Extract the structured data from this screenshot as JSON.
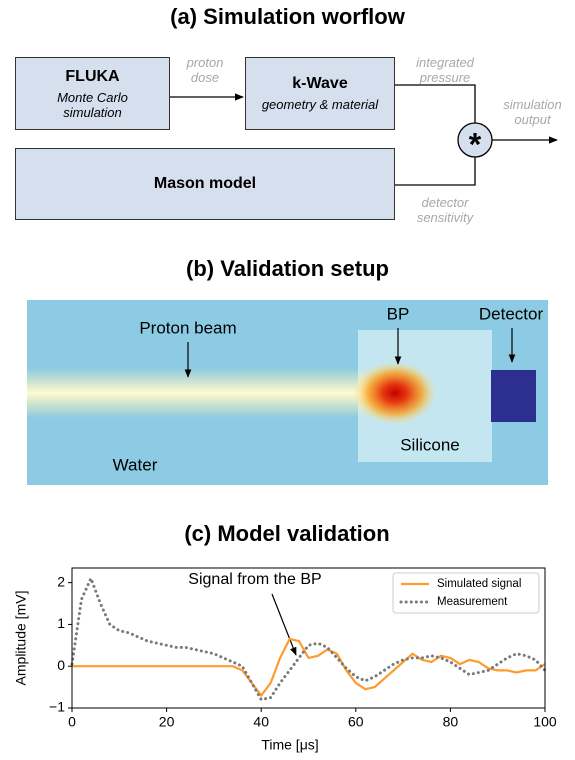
{
  "workflow": {
    "title": "(a) Simulation worflow",
    "boxes": [
      {
        "title": "FLUKA",
        "subtitle": "Monte Carlo\nsimulation"
      },
      {
        "title": "k-Wave",
        "subtitle": "geometry & material"
      },
      {
        "title": "Mason model"
      }
    ],
    "operator": "*",
    "labels": [
      "proton\ndose",
      "integrated\npressure",
      "simulation\noutput",
      "detector\nsensitivity"
    ]
  },
  "setup": {
    "title": "(b) Validation setup",
    "labels": [
      "Proton beam",
      "BP",
      "Detector",
      "Silicone",
      "Water"
    ]
  },
  "chart_data": {
    "type": "line",
    "title": "(c) Model validation",
    "xlabel": "Time [μs]",
    "ylabel": "Amplitude [mV]",
    "annotation": "Signal from the BP",
    "legend": "upper right",
    "x": [
      0,
      2,
      4,
      6,
      8,
      10,
      12,
      14,
      16,
      18,
      20,
      22,
      24,
      26,
      28,
      30,
      32,
      34,
      36,
      38,
      40,
      42,
      44,
      46,
      48,
      50,
      52,
      54,
      56,
      58,
      60,
      62,
      64,
      66,
      68,
      70,
      72,
      74,
      76,
      78,
      80,
      82,
      84,
      86,
      88,
      90,
      92,
      94,
      96,
      98,
      100
    ],
    "series": [
      {
        "name": "Simulated signal",
        "color": "#ff9a2e",
        "linestyle": "solid",
        "values": [
          0,
          0,
          0,
          0,
          0,
          0,
          0,
          0,
          0,
          0,
          0,
          0,
          0,
          0,
          0,
          0,
          0,
          0,
          -0.1,
          -0.4,
          -0.7,
          -0.4,
          0.2,
          0.65,
          0.6,
          0.2,
          0.25,
          0.4,
          0.3,
          -0.1,
          -0.4,
          -0.55,
          -0.5,
          -0.3,
          -0.1,
          0.1,
          0.3,
          0.15,
          0.1,
          0.25,
          0.2,
          0.05,
          0.15,
          0.1,
          -0.05,
          -0.1,
          -0.1,
          -0.15,
          -0.1,
          -0.1,
          0.05
        ]
      },
      {
        "name": "Measurement",
        "color": "#7a7a7a",
        "linestyle": "dotted",
        "values": [
          0.05,
          1.6,
          2.1,
          1.5,
          1.0,
          0.85,
          0.8,
          0.7,
          0.6,
          0.55,
          0.5,
          0.45,
          0.45,
          0.4,
          0.35,
          0.3,
          0.2,
          0.1,
          0,
          -0.4,
          -0.8,
          -0.75,
          -0.4,
          -0.1,
          0.2,
          0.5,
          0.55,
          0.45,
          0.2,
          -0.05,
          -0.25,
          -0.35,
          -0.25,
          -0.1,
          0.05,
          0.15,
          0.2,
          0.2,
          0.25,
          0.2,
          0.1,
          -0.05,
          -0.2,
          -0.15,
          -0.1,
          0.05,
          0.2,
          0.3,
          0.25,
          0.15,
          -0.1
        ]
      }
    ],
    "xlim": [
      0,
      100
    ],
    "xticks": [
      0,
      20,
      40,
      60,
      80,
      100
    ],
    "ylim": [
      -1,
      2.35
    ],
    "yticks": [
      {
        "value": -1,
        "label": "−1"
      },
      0,
      1,
      2
    ]
  }
}
